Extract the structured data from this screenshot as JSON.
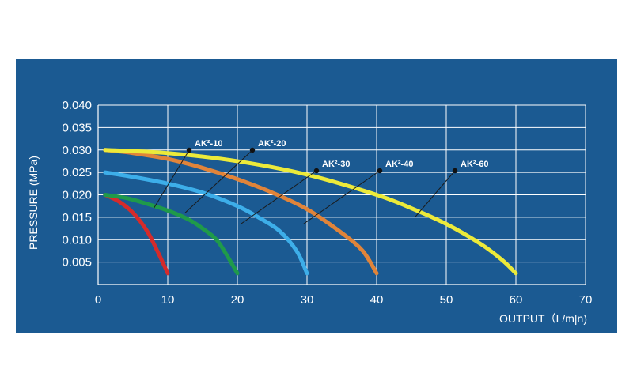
{
  "chart_data": {
    "type": "line",
    "xlabel": "OUTPUT（L/m|n)",
    "ylabel": "PRESSURE (MPa)",
    "xlim": [
      0,
      70
    ],
    "ylim": [
      0,
      0.04
    ],
    "x_ticks": [
      "0",
      "10",
      "20",
      "30",
      "40",
      "50",
      "60",
      "70"
    ],
    "y_ticks": [
      "0.005",
      "0.010",
      "0.015",
      "0.020",
      "0.025",
      "0.030",
      "0.035",
      "0.040"
    ],
    "grid": true,
    "series": [
      {
        "name": "AK²-10",
        "color": "#d52b2b",
        "label_at": [
          8,
          0.017
        ],
        "x": [
          1,
          3,
          5,
          7,
          8.5,
          10
        ],
        "y": [
          0.02,
          0.0185,
          0.016,
          0.012,
          0.0075,
          0.0025
        ]
      },
      {
        "name": "AK²-20",
        "color": "#1f9a4a",
        "label_at": [
          12.5,
          0.016
        ],
        "x": [
          1,
          4,
          7,
          10,
          13,
          15,
          17,
          18.5,
          20
        ],
        "y": [
          0.02,
          0.0193,
          0.018,
          0.0165,
          0.0145,
          0.0125,
          0.01,
          0.0065,
          0.0025
        ]
      },
      {
        "name": "AK²-30",
        "color": "#3daee9",
        "label_at": [
          20.5,
          0.0135
        ],
        "x": [
          1,
          5,
          10,
          15,
          20,
          23,
          26,
          28.5,
          30
        ],
        "y": [
          0.025,
          0.024,
          0.0225,
          0.0205,
          0.0175,
          0.015,
          0.012,
          0.0075,
          0.0025
        ]
      },
      {
        "name": "AK²-40",
        "color": "#e0843a",
        "label_at": [
          29.5,
          0.0135
        ],
        "x": [
          1,
          5,
          10,
          15,
          20,
          25,
          30,
          35,
          38,
          40
        ],
        "y": [
          0.03,
          0.0293,
          0.028,
          0.026,
          0.0235,
          0.0205,
          0.0168,
          0.0115,
          0.0075,
          0.0025
        ]
      },
      {
        "name": "AK²-60",
        "color": "#ecea3a",
        "label_at": [
          45.5,
          0.015
        ],
        "x": [
          1,
          10,
          20,
          30,
          40,
          45,
          50,
          55,
          58,
          60
        ],
        "y": [
          0.03,
          0.0293,
          0.0275,
          0.0245,
          0.02,
          0.017,
          0.0135,
          0.009,
          0.0055,
          0.0025
        ]
      }
    ]
  }
}
